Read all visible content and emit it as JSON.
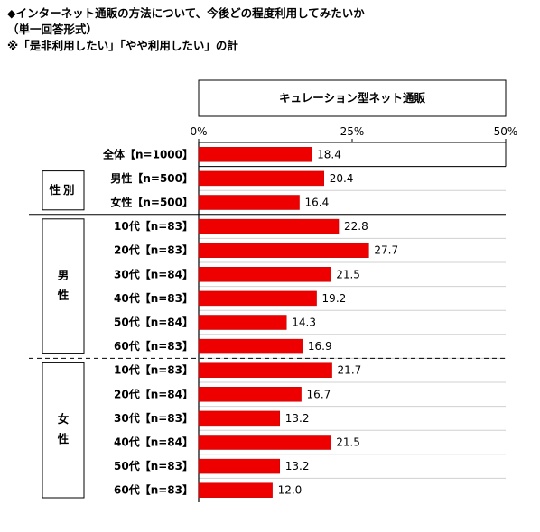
{
  "title_lines": [
    "◆インターネット通販の方法について、今後どの程度利用してみたいか",
    "（単一回答形式）",
    "※「是非利用したい」「やや利用したい」の計"
  ],
  "colors": {
    "bar": "#ee0000",
    "bar_edge": "#c00000"
  },
  "chart_data": {
    "type": "bar",
    "orientation": "horizontal",
    "series": [
      {
        "name": "キュレーション型ネット通販",
        "values": [
          18.4,
          20.4,
          16.4,
          22.8,
          27.7,
          21.5,
          19.2,
          14.3,
          16.9,
          21.7,
          16.7,
          13.2,
          21.5,
          13.2,
          12.0
        ]
      }
    ],
    "categories": [
      "全体【n=1000】",
      "男性【n=500】",
      "女性【n=500】",
      "10代【n=83】",
      "20代【n=83】",
      "30代【n=84】",
      "40代【n=83】",
      "50代【n=84】",
      "60代【n=83】",
      "10代【n=83】",
      "20代【n=84】",
      "30代【n=83】",
      "40代【n=84】",
      "50代【n=83】",
      "60代【n=83】"
    ],
    "groups": [
      "性別",
      "男性",
      "女性"
    ],
    "xlim": [
      0,
      50
    ],
    "xticks": [
      "0%",
      "25%",
      "50%"
    ],
    "grid": true
  }
}
